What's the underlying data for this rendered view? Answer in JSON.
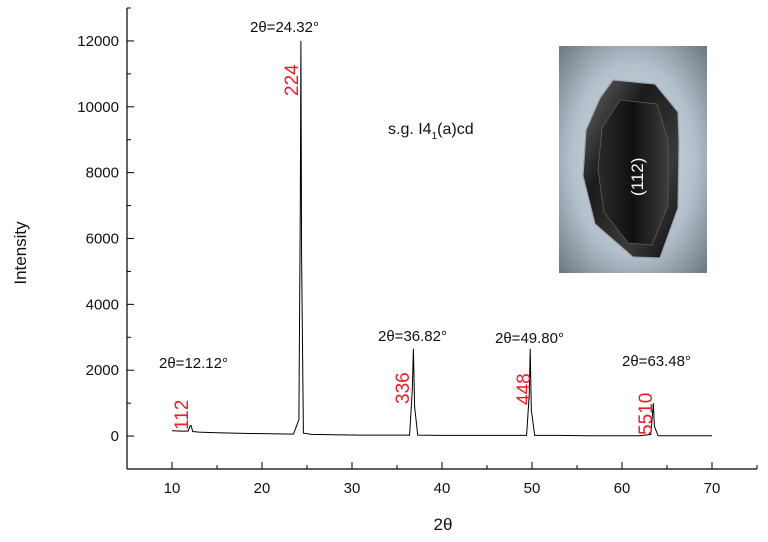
{
  "chart_data": {
    "type": "line",
    "xlabel": "2θ",
    "ylabel": "Intensity",
    "xlim": [
      5,
      75
    ],
    "ylim": [
      -1000,
      13000
    ],
    "x_ticks": [
      10,
      20,
      30,
      40,
      50,
      60,
      70
    ],
    "y_ticks": [
      0,
      2000,
      4000,
      6000,
      8000,
      10000,
      12000
    ],
    "grid": false,
    "series": [
      {
        "x": [
          10.0,
          11.0,
          11.8,
          12.0,
          12.12,
          12.3,
          13.0,
          15.0,
          18.0,
          21.0,
          23.5,
          24.1,
          24.25,
          24.32,
          24.4,
          24.6,
          25.5,
          28.0,
          31.0,
          34.0,
          36.4,
          36.7,
          36.82,
          36.95,
          37.3,
          40.0,
          43.0,
          46.0,
          49.4,
          49.7,
          49.8,
          49.92,
          50.3,
          53.0,
          56.0,
          59.0,
          62.0,
          63.2,
          63.4,
          63.48,
          63.6,
          64.0,
          66.0,
          68.0,
          70.0
        ],
        "values": [
          160,
          150,
          150,
          310,
          320,
          140,
          120,
          100,
          80,
          70,
          60,
          500,
          7000,
          12000,
          5500,
          90,
          50,
          40,
          30,
          30,
          30,
          1400,
          2650,
          900,
          30,
          20,
          20,
          20,
          20,
          1300,
          2650,
          800,
          20,
          20,
          10,
          10,
          10,
          50,
          700,
          1000,
          300,
          10,
          10,
          10,
          10
        ]
      }
    ],
    "annotations": {
      "peak1": "2θ=12.12°",
      "peak2": "2θ=24.32°",
      "peak3": "2θ=36.82°",
      "peak4": "2θ=49.80°",
      "peak5": "2θ=63.48°"
    },
    "hkl_labels": {
      "peak1": "112",
      "peak2": "224",
      "peak3": "336",
      "peak4": "448",
      "peak5": "5510"
    },
    "space_group": {
      "prefix": "s.g. I4",
      "subscript": "1",
      "suffix": "(a)cd"
    },
    "inset": {
      "label": "(112)"
    },
    "colors": {
      "line": "#000000",
      "hkl": "#e8202a",
      "axis": "#000000"
    }
  }
}
